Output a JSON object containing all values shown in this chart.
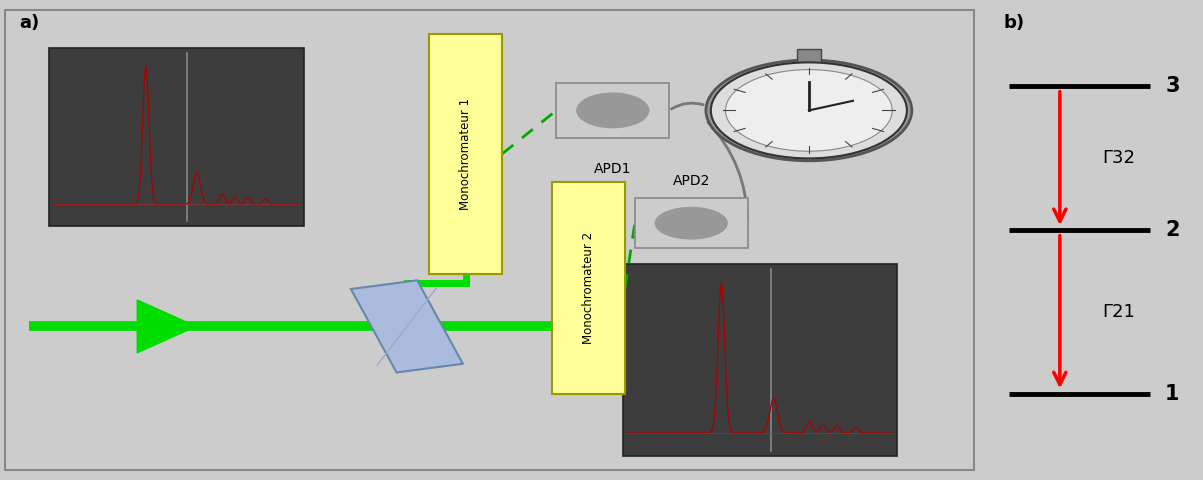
{
  "fig_width": 12.03,
  "fig_height": 4.8,
  "dpi": 100,
  "label_a": "a)",
  "label_b": "b)",
  "mono1_label": "Monochromateur 1",
  "mono2_label": "Monochromateur 2",
  "apd1_label": "APD1",
  "apd2_label": "APD2",
  "level_labels": [
    "1",
    "2",
    "3"
  ],
  "transition_labels": [
    "Γ32",
    "Γ21"
  ],
  "arrow_color": "#ff0000",
  "mono_fill": "#ffff99",
  "mono_edge": "#cccc00",
  "green_line": "#00dd00",
  "dashed_green": "#00aa00",
  "panel_a_bg": "#cccccc",
  "panel_b_bg": "#ffffff",
  "dark_box": "#3a3a3a",
  "apd_fill": "#b0b0b0",
  "apd_spot": "#888888",
  "wire_color": "#777777",
  "bs_fill": "#aabbdd",
  "bs_edge": "#6688aa"
}
